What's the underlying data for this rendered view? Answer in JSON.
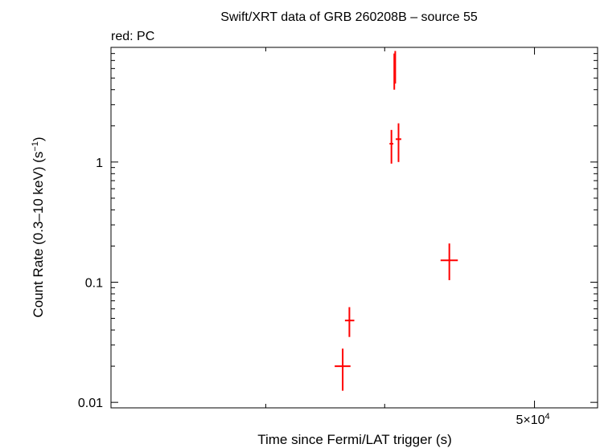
{
  "chart_data": {
    "type": "scatter",
    "title": "Swift/XRT data of GRB 260208B – source 55",
    "subtitle": "red: PC",
    "xlabel": "Time since Fermi/LAT trigger (s)",
    "ylabel": "Count Rate (0.3–10 keV) (s",
    "ylabel_sup": "−1",
    "ylabel_end": ")",
    "x_scale": "log",
    "y_scale": "log",
    "xlim": [
      11800,
      62000
    ],
    "ylim": [
      0.009,
      9
    ],
    "grid": false,
    "y_ticks": [
      {
        "value": 0.01,
        "label": "0.01"
      },
      {
        "value": 0.1,
        "label": "0.1"
      },
      {
        "value": 1,
        "label": "1"
      }
    ],
    "x_major_ticks": [
      {
        "value": 50000,
        "label_base": "5×10",
        "label_sup": "4"
      }
    ],
    "x_minor_ticks": [
      20000,
      30000
    ],
    "series": [
      {
        "color": "#ff0000",
        "points": [
          {
            "x": 26000,
            "x_lo": 25300,
            "x_hi": 26700,
            "y": 0.02,
            "y_lo": 0.0125,
            "y_hi": 0.028
          },
          {
            "x": 26600,
            "x_lo": 26200,
            "x_hi": 27050,
            "y": 0.048,
            "y_lo": 0.035,
            "y_hi": 0.062
          },
          {
            "x": 30700,
            "x_lo": 30500,
            "x_hi": 30900,
            "y": 1.42,
            "y_lo": 0.97,
            "y_hi": 1.85
          },
          {
            "x": 31000,
            "x_lo": 30950,
            "x_hi": 31080,
            "y": 6.2,
            "y_lo": 4.0,
            "y_hi": 8.0
          },
          {
            "x": 31100,
            "x_lo": 31050,
            "x_hi": 31150,
            "y": 6.6,
            "y_lo": 4.5,
            "y_hi": 8.4
          },
          {
            "x": 31450,
            "x_lo": 31150,
            "x_hi": 31750,
            "y": 1.55,
            "y_lo": 1.0,
            "y_hi": 2.1
          },
          {
            "x": 37400,
            "x_lo": 36300,
            "x_hi": 38500,
            "y": 0.152,
            "y_lo": 0.104,
            "y_hi": 0.21
          }
        ]
      }
    ]
  }
}
